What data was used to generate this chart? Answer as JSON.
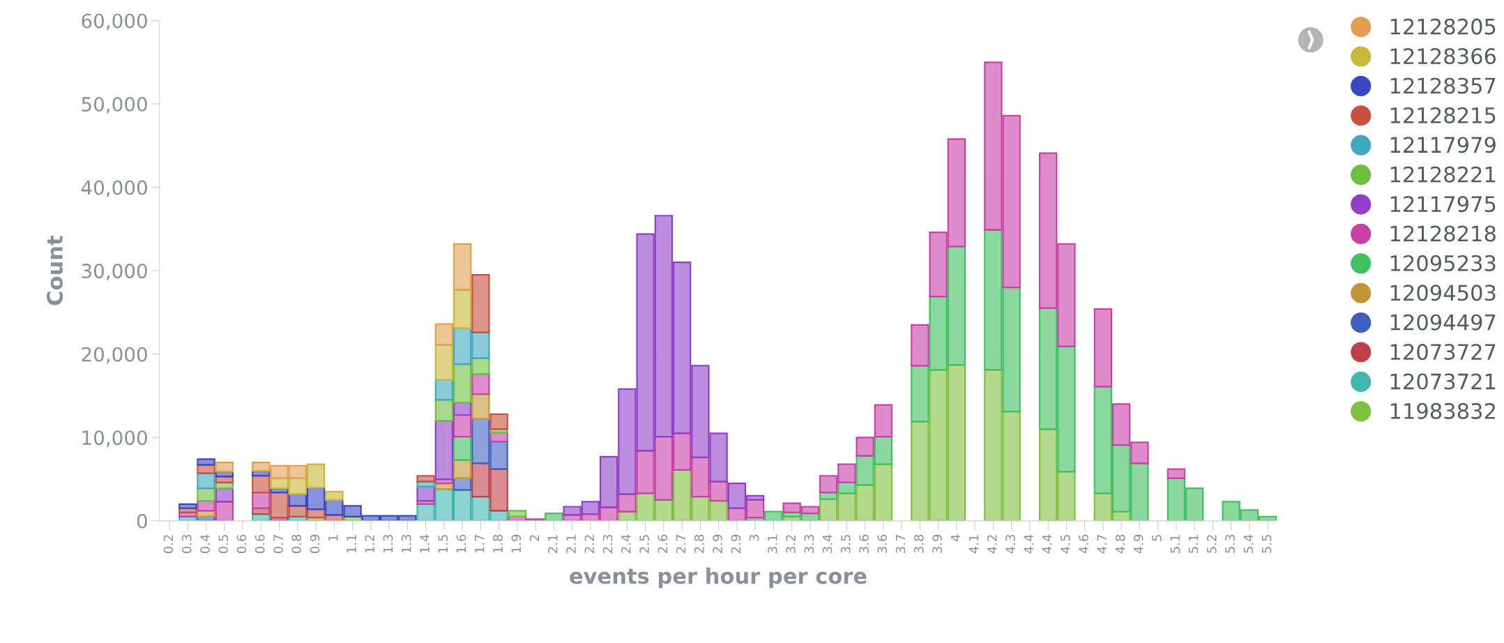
{
  "chart_data": {
    "type": "bar",
    "stacked": true,
    "xlabel": "events per hour per core",
    "ylabel": "Count",
    "categories": [
      "0.2",
      "0.3",
      "0.4",
      "0.5",
      "0.6",
      "0.6",
      "0.7",
      "0.8",
      "0.9",
      "1",
      "1.1",
      "1.2",
      "1.3",
      "1.3",
      "1.4",
      "1.5",
      "1.6",
      "1.7",
      "1.8",
      "1.9",
      "2",
      "2.1",
      "2.1",
      "2.2",
      "2.3",
      "2.4",
      "2.5",
      "2.6",
      "2.7",
      "2.8",
      "2.9",
      "2.9",
      "3",
      "3.1",
      "3.2",
      "3.3",
      "3.4",
      "3.5",
      "3.6",
      "3.6",
      "3.7",
      "3.8",
      "3.9",
      "4",
      "4.1",
      "4.2",
      "4.3",
      "4.4",
      "4.4",
      "4.5",
      "4.6",
      "4.7",
      "4.8",
      "4.9",
      "5",
      "5.1",
      "5.1",
      "5.2",
      "5.3",
      "5.4",
      "5.5"
    ],
    "ylim": [
      0,
      60000
    ],
    "yticks": [
      {
        "value": 0,
        "label": "0"
      },
      {
        "value": 10000,
        "label": "10,000"
      },
      {
        "value": 20000,
        "label": "20,000"
      },
      {
        "value": 30000,
        "label": "30,000"
      },
      {
        "value": 40000,
        "label": "40,000"
      },
      {
        "value": 50000,
        "label": "50,000"
      },
      {
        "value": 60000,
        "label": "60,000"
      }
    ],
    "grid": false,
    "legend": "right",
    "marker": "circle",
    "series": [
      {
        "name": "11983832",
        "color": "#80c040",
        "values": [
          null,
          null,
          null,
          null,
          null,
          null,
          null,
          null,
          null,
          null,
          null,
          null,
          null,
          null,
          null,
          null,
          null,
          null,
          null,
          null,
          null,
          null,
          null,
          null,
          null,
          1100,
          3300,
          2500,
          6100,
          2900,
          2400,
          null,
          null,
          null,
          500,
          null,
          2600,
          3300,
          4300,
          6800,
          null,
          11900,
          18100,
          18700,
          null,
          18100,
          13100,
          null,
          11000,
          5900,
          null,
          3300,
          1100,
          null,
          null,
          null,
          null,
          null,
          null,
          null,
          null
        ]
      },
      {
        "name": "12073721",
        "color": "#40b8b0",
        "values": [
          null,
          500,
          null,
          null,
          null,
          800,
          null,
          500,
          null,
          null,
          null,
          null,
          null,
          null,
          2000,
          3800,
          3700,
          2900,
          1200,
          null,
          null,
          null,
          null,
          null,
          null,
          null,
          null,
          null,
          null,
          null,
          null,
          null,
          null,
          null,
          null,
          null,
          null,
          null,
          null,
          null,
          null,
          null,
          null,
          null,
          null,
          null,
          null,
          null,
          null,
          null,
          null,
          null,
          null,
          null,
          null,
          null,
          null,
          null,
          null,
          null,
          null
        ]
      },
      {
        "name": "12073727",
        "color": "#c04048",
        "values": [
          null,
          null,
          null,
          null,
          null,
          700,
          null,
          null,
          null,
          null,
          null,
          null,
          null,
          null,
          null,
          null,
          null,
          4000,
          5000,
          null,
          null,
          null,
          null,
          null,
          null,
          null,
          null,
          null,
          null,
          null,
          null,
          null,
          null,
          null,
          null,
          null,
          null,
          null,
          null,
          null,
          null,
          null,
          null,
          null,
          null,
          null,
          null,
          null,
          null,
          null,
          null,
          null,
          null,
          null,
          null,
          null,
          null,
          null,
          null,
          null,
          null
        ]
      },
      {
        "name": "12094497",
        "color": "#4060c0",
        "values": [
          null,
          null,
          500,
          null,
          null,
          null,
          null,
          null,
          null,
          null,
          null,
          null,
          null,
          null,
          null,
          null,
          1400,
          5300,
          3300,
          null,
          null,
          null,
          null,
          null,
          null,
          null,
          null,
          null,
          null,
          null,
          null,
          null,
          null,
          null,
          null,
          null,
          null,
          null,
          null,
          null,
          null,
          null,
          null,
          null,
          null,
          null,
          null,
          null,
          null,
          null,
          null,
          null,
          null,
          null,
          null,
          null,
          null,
          null,
          null,
          null,
          null
        ]
      },
      {
        "name": "12094503",
        "color": "#c09838",
        "values": [
          null,
          null,
          700,
          null,
          null,
          null,
          null,
          null,
          null,
          null,
          null,
          null,
          null,
          null,
          null,
          700,
          2200,
          3000,
          null,
          null,
          null,
          null,
          null,
          null,
          null,
          null,
          null,
          null,
          null,
          null,
          null,
          null,
          null,
          null,
          null,
          null,
          null,
          null,
          null,
          null,
          null,
          null,
          null,
          null,
          null,
          null,
          null,
          null,
          null,
          null,
          null,
          null,
          null,
          null,
          null,
          null,
          null,
          null,
          null,
          null,
          null
        ]
      },
      {
        "name": "12095233",
        "color": "#40c060",
        "values": [
          null,
          null,
          null,
          null,
          null,
          null,
          null,
          null,
          null,
          null,
          null,
          null,
          null,
          null,
          null,
          null,
          2800,
          null,
          null,
          null,
          null,
          900,
          null,
          null,
          null,
          null,
          null,
          null,
          null,
          null,
          null,
          null,
          400,
          1100,
          500,
          900,
          800,
          1300,
          3500,
          3300,
          null,
          6700,
          8800,
          14200,
          null,
          16800,
          14900,
          null,
          14500,
          15000,
          null,
          12800,
          8000,
          6900,
          null,
          5100,
          3900,
          null,
          2300,
          1300,
          500
        ]
      },
      {
        "name": "12128218",
        "color": "#c840a8",
        "values": [
          null,
          500,
          1200,
          2300,
          null,
          1900,
          null,
          null,
          null,
          null,
          null,
          null,
          null,
          null,
          400,
          500,
          2600,
          2400,
          1100,
          500,
          200,
          null,
          700,
          800,
          1600,
          2100,
          5100,
          7600,
          4400,
          4700,
          2300,
          1500,
          2100,
          null,
          1100,
          800,
          2000,
          2200,
          2200,
          3800,
          null,
          4900,
          7700,
          12900,
          null,
          20100,
          20600,
          null,
          18600,
          12300,
          null,
          9300,
          4900,
          2500,
          null,
          1100,
          null,
          null,
          null,
          null,
          null
        ]
      },
      {
        "name": "12117975",
        "color": "#9040c8",
        "values": [
          null,
          null,
          null,
          1600,
          null,
          null,
          400,
          null,
          null,
          null,
          null,
          null,
          null,
          null,
          1700,
          7000,
          1500,
          null,
          null,
          null,
          null,
          null,
          1000,
          1500,
          6100,
          12600,
          26000,
          26500,
          20500,
          11000,
          5800,
          3000,
          500,
          null,
          null,
          null,
          null,
          null,
          null,
          null,
          null,
          null,
          null,
          null,
          null,
          null,
          null,
          null,
          null,
          null,
          null,
          null,
          null,
          null,
          null,
          null,
          null,
          null,
          null,
          null,
          null
        ]
      },
      {
        "name": "12128221",
        "color": "#70c040",
        "values": [
          null,
          null,
          1500,
          700,
          null,
          null,
          null,
          null,
          400,
          null,
          500,
          null,
          null,
          null,
          null,
          2500,
          4600,
          1900,
          400,
          700,
          null,
          null,
          null,
          null,
          null,
          null,
          null,
          null,
          null,
          null,
          null,
          null,
          null,
          null,
          null,
          null,
          null,
          null,
          null,
          null,
          null,
          null,
          null,
          null,
          null,
          null,
          null,
          null,
          null,
          null,
          null,
          null,
          null,
          null,
          null,
          null,
          null,
          null,
          null,
          null,
          null
        ]
      },
      {
        "name": "12117979",
        "color": "#40a8c0",
        "values": [
          null,
          null,
          1800,
          null,
          null,
          null,
          null,
          null,
          null,
          null,
          null,
          null,
          null,
          null,
          600,
          2400,
          4300,
          3100,
          null,
          null,
          null,
          null,
          null,
          null,
          null,
          null,
          null,
          null,
          null,
          null,
          null,
          null,
          null,
          null,
          null,
          null,
          null,
          null,
          null,
          null,
          null,
          null,
          null,
          null,
          null,
          null,
          null,
          null,
          null,
          null,
          null,
          null,
          null,
          null,
          null,
          null,
          null,
          null,
          null,
          null,
          null
        ]
      },
      {
        "name": "12128215",
        "color": "#c85040",
        "values": [
          null,
          500,
          1000,
          700,
          null,
          2000,
          3000,
          1300,
          1000,
          700,
          null,
          null,
          null,
          null,
          700,
          null,
          null,
          6900,
          1800,
          null,
          null,
          null,
          null,
          null,
          null,
          null,
          null,
          null,
          null,
          null,
          null,
          null,
          null,
          null,
          null,
          null,
          null,
          null,
          null,
          null,
          null,
          null,
          null,
          null,
          null,
          null,
          null,
          null,
          null,
          null,
          null,
          null,
          null,
          null,
          null,
          null,
          null,
          null,
          null,
          null,
          null
        ]
      },
      {
        "name": "12128357",
        "color": "#3848c0",
        "values": [
          null,
          500,
          700,
          600,
          null,
          600,
          500,
          1400,
          2600,
          1800,
          1300,
          600,
          600,
          600,
          null,
          null,
          null,
          null,
          null,
          null,
          null,
          null,
          null,
          null,
          null,
          null,
          null,
          null,
          null,
          null,
          null,
          null,
          null,
          null,
          null,
          null,
          null,
          null,
          null,
          null,
          null,
          null,
          null,
          null,
          null,
          null,
          null,
          null,
          null,
          null,
          null,
          null,
          null,
          null,
          null,
          null,
          null,
          null,
          null,
          null,
          null
        ]
      },
      {
        "name": "12128366",
        "color": "#c8b838",
        "values": [
          null,
          null,
          null,
          null,
          null,
          null,
          1200,
          1900,
          2800,
          1000,
          null,
          null,
          null,
          null,
          null,
          4200,
          4600,
          null,
          null,
          null,
          null,
          null,
          null,
          null,
          null,
          null,
          null,
          null,
          null,
          null,
          null,
          null,
          null,
          null,
          null,
          null,
          null,
          null,
          null,
          null,
          null,
          null,
          null,
          null,
          null,
          null,
          null,
          null,
          null,
          null,
          null,
          null,
          null,
          null,
          null,
          null,
          null,
          null,
          null,
          null,
          null
        ]
      },
      {
        "name": "12128205",
        "color": "#e0a050",
        "values": [
          null,
          null,
          null,
          1100,
          null,
          1000,
          1500,
          1500,
          null,
          null,
          null,
          null,
          null,
          null,
          null,
          2500,
          5500,
          null,
          null,
          null,
          null,
          null,
          null,
          null,
          null,
          null,
          null,
          null,
          null,
          null,
          null,
          null,
          null,
          null,
          null,
          null,
          null,
          null,
          null,
          null,
          null,
          null,
          null,
          null,
          null,
          null,
          null,
          null,
          null,
          null,
          null,
          null,
          null,
          null,
          null,
          null,
          null,
          null,
          null,
          null,
          null
        ]
      }
    ]
  }
}
